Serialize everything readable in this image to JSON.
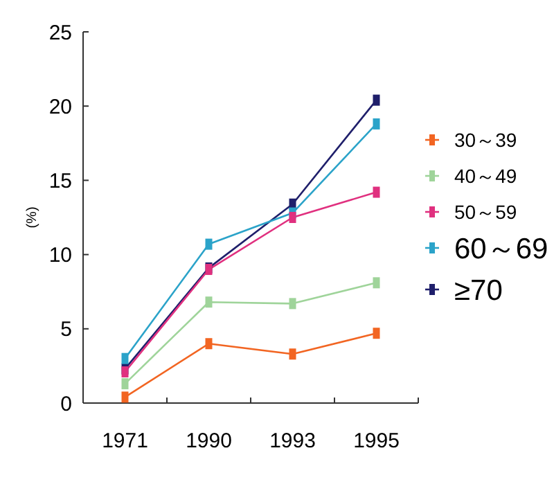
{
  "chart_data": {
    "type": "line",
    "ylabel": "(%)",
    "categories": [
      "1971",
      "1990",
      "1993",
      "1995"
    ],
    "ylim": [
      0,
      25
    ],
    "yticks": [
      0,
      5,
      10,
      15,
      20,
      25
    ],
    "grid": false,
    "legend": "right",
    "marker": "square",
    "line_style": "solid",
    "series": [
      {
        "name": "30～39",
        "color": "#f26522",
        "values": [
          0.4,
          4.0,
          3.3,
          4.7
        ]
      },
      {
        "name": "40～49",
        "color": "#9fd49a",
        "values": [
          1.3,
          6.8,
          6.7,
          8.1
        ]
      },
      {
        "name": "50～59",
        "color": "#e0307f",
        "values": [
          2.1,
          9.0,
          12.5,
          14.2
        ]
      },
      {
        "name": "60～69",
        "color": "#2ba3c9",
        "values": [
          3.0,
          10.7,
          12.8,
          18.8
        ]
      },
      {
        "name": "≥70",
        "color": "#1f1f6b",
        "values": [
          2.3,
          9.1,
          13.4,
          20.4
        ]
      }
    ]
  }
}
